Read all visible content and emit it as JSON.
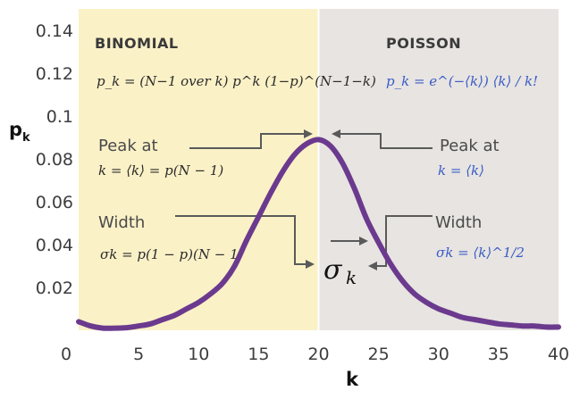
{
  "chart_data": {
    "type": "line",
    "x": [
      0,
      1,
      2,
      3,
      4,
      5,
      6,
      7,
      8,
      9,
      10,
      11,
      12,
      13,
      14,
      15,
      16,
      17,
      18,
      19,
      20,
      21,
      22,
      23,
      24,
      25,
      26,
      27,
      28,
      29,
      30,
      31,
      32,
      33,
      34,
      35,
      36,
      37,
      38,
      39,
      40
    ],
    "series": [
      {
        "color": "#6b3a8e",
        "values": [
          0.004,
          0.002,
          0.001,
          0.001,
          0.0012,
          0.002,
          0.003,
          0.005,
          0.007,
          0.01,
          0.013,
          0.017,
          0.022,
          0.03,
          0.042,
          0.053,
          0.064,
          0.074,
          0.082,
          0.087,
          0.089,
          0.086,
          0.078,
          0.066,
          0.052,
          0.041,
          0.031,
          0.023,
          0.017,
          0.013,
          0.01,
          0.008,
          0.006,
          0.005,
          0.004,
          0.003,
          0.0025,
          0.002,
          0.002,
          0.0015,
          0.0015
        ]
      }
    ],
    "xlim": [
      0,
      40
    ],
    "ylim": [
      0,
      0.15
    ],
    "xticks": [
      "0",
      "5",
      "10",
      "15",
      "20",
      "25",
      "30",
      "35",
      "40"
    ],
    "yticks": [
      "0.02",
      "0.04",
      "0.06",
      "0.08",
      "0.1",
      "0.12",
      "0.14"
    ],
    "xlabel": "k",
    "ylabel": "p",
    "ylabel_sub": "k",
    "regions": [
      {
        "label": "BINOMIAL",
        "x_from": 0,
        "x_to": 20,
        "color": "#fbf1c7"
      },
      {
        "label": "POISSON",
        "x_from": 20,
        "x_to": 40,
        "color": "#e7e4e1"
      }
    ],
    "annotations": {
      "binomial_formula": "p_k = (N−1 over k) p^k (1−p)^(N−1−k)",
      "poisson_formula": "p_k = e^(−⟨k⟩) ⟨k⟩ / k!",
      "left_peak_label": "Peak at",
      "left_peak_formula": "k = ⟨k⟩ = p(N − 1)",
      "right_peak_label": "Peak at",
      "right_peak_formula": "k = ⟨k⟩",
      "left_width_label": "Width",
      "left_width_formula": "σk = p(1 − p)(N − 1)",
      "right_width_label": "Width",
      "right_width_formula": "σk = ⟨k⟩^1/2",
      "sigma_label": "σ",
      "sigma_sub": "k"
    },
    "colors": {
      "curve": "#6b3a8e",
      "poisson_text": "#3a5bc7",
      "binomial_text": "#2b2b2b",
      "arrow": "#5a5a5a"
    },
    "grid": false
  }
}
